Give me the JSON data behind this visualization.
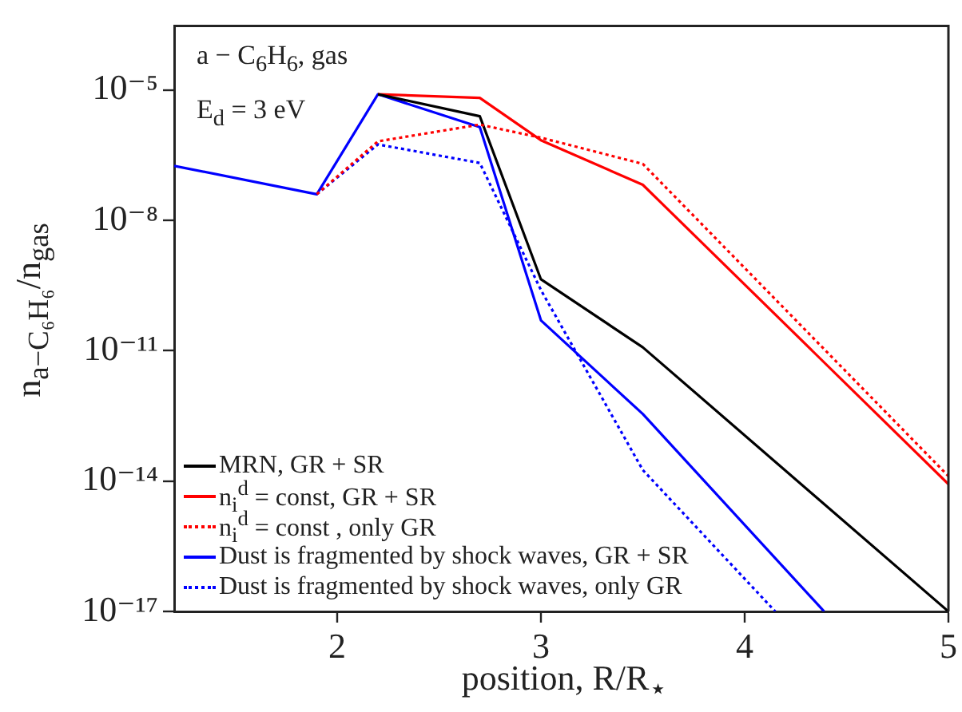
{
  "chart_data": {
    "type": "line",
    "xlabel": "position, R/R$_{⋆}$",
    "ylabel": "n$_{a−C₆H₆}$/n$_{gas}$",
    "annotations": [
      "a − C$_{6}$H$_{6}$, gas",
      "E$_{d}$ = 3 eV"
    ],
    "log": "y",
    "xlim": [
      1.2,
      5
    ],
    "xticks": [
      2,
      3,
      4,
      5
    ],
    "ylim": [
      1e-17,
      0.0003
    ],
    "yticks": [
      {
        "value": 1e-17,
        "label": "10⁻¹⁷"
      },
      {
        "value": 1e-14,
        "label": "10⁻¹⁴"
      },
      {
        "value": 1e-11,
        "label": "10⁻¹¹"
      },
      {
        "value": 1e-08,
        "label": "10⁻⁸"
      },
      {
        "value": 1e-05,
        "label": "10⁻⁵"
      }
    ],
    "grid": false,
    "legend": "bottom left",
    "marker": "none",
    "series": [
      {
        "name": "MRN, GR + SR",
        "color": "#000000",
        "line_style": "solid",
        "x": [
          2.2,
          2.7,
          3.0,
          3.5,
          5
        ],
        "values": [
          8e-06,
          2.5e-06,
          4.4e-10,
          1.2e-11,
          1e-17
        ]
      },
      {
        "name": "n$_{i}$$^{d}$ = const, GR + SR",
        "color": "#ff0000",
        "line_style": "solid",
        "x": [
          2.2,
          2.7,
          3.0,
          3.5,
          5
        ],
        "values": [
          8e-06,
          6.6e-06,
          7e-07,
          6.6e-08,
          8.5e-15
        ]
      },
      {
        "name": "n$_{i}$$^{d}$ = const , only GR",
        "color": "#ff0000",
        "line_style": "dotted",
        "x": [
          1.9,
          2.2,
          2.7,
          3.0,
          3.5,
          5
        ],
        "values": [
          4e-08,
          6.6e-07,
          1.6e-06,
          8e-07,
          2e-07,
          1.3e-14
        ]
      },
      {
        "name": "Dust is fragmented by shock waves, GR + SR",
        "color": "#0000ff",
        "line_style": "solid",
        "x": [
          1.2,
          1.9,
          2.2,
          2.7,
          3.0,
          3.5,
          4.39
        ],
        "values": [
          1.8e-07,
          4e-08,
          8e-06,
          1.4e-06,
          5e-11,
          3.5e-13,
          1e-17
        ]
      },
      {
        "name": "Dust is fragmented by shock waves, only GR",
        "color": "#0000ff",
        "line_style": "dotted",
        "x": [
          1.9,
          2.2,
          2.7,
          3.0,
          3.5,
          4.15
        ],
        "values": [
          4e-08,
          5.6e-07,
          2.1e-07,
          2.5e-10,
          1.8e-14,
          1e-17
        ]
      }
    ]
  }
}
